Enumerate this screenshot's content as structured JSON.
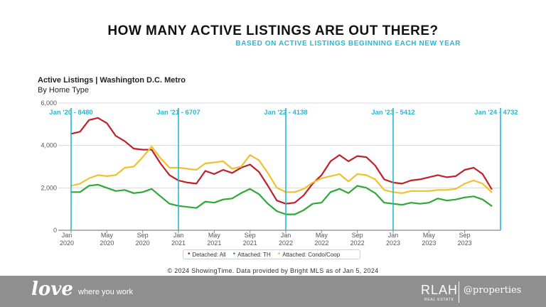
{
  "header": {
    "title": "HOW MANY ACTIVE LISTINGS ARE OUT THERE?",
    "subtitle": "BASED ON ACTIVE LISTINGS BEGINNING EACH NEW YEAR"
  },
  "chart_data": {
    "type": "line",
    "title": "Active Listings | Washington D.C. Metro",
    "subtitle": "By Home Type",
    "ylim": [
      0,
      6000
    ],
    "yticks": [
      0,
      2000,
      4000,
      6000
    ],
    "ytick_labels": [
      "0",
      "2,000",
      "4,000",
      "6,000"
    ],
    "x_start": "2020-01",
    "n_months": 48,
    "xticks": [
      {
        "month": 0,
        "label1": "Jan",
        "label2": "2020"
      },
      {
        "month": 4,
        "label1": "May",
        "label2": "2020"
      },
      {
        "month": 8,
        "label1": "Sep",
        "label2": "2020"
      },
      {
        "month": 12,
        "label1": "Jan",
        "label2": "2021"
      },
      {
        "month": 16,
        "label1": "May",
        "label2": "2021"
      },
      {
        "month": 20,
        "label1": "Sep",
        "label2": "2021"
      },
      {
        "month": 24,
        "label1": "Jan",
        "label2": "2022"
      },
      {
        "month": 28,
        "label1": "May",
        "label2": "2022"
      },
      {
        "month": 32,
        "label1": "Sep",
        "label2": "2022"
      },
      {
        "month": 36,
        "label1": "Jan",
        "label2": "2023"
      },
      {
        "month": 40,
        "label1": "May",
        "label2": "2023"
      },
      {
        "month": 44,
        "label1": "Sep",
        "label2": "2023"
      }
    ],
    "markers": [
      {
        "month": 0,
        "label": "Jan '20 - 8480"
      },
      {
        "month": 12,
        "label": "Jan '21 - 6707"
      },
      {
        "month": 24,
        "label": "Jan '22 - 4138"
      },
      {
        "month": 36,
        "label": "Jan '23 - 5412"
      },
      {
        "month": 48,
        "label": "Jan '24 - 4732"
      }
    ],
    "series": [
      {
        "name": "Detached: All",
        "color": "#c0202a",
        "values": [
          4550,
          4650,
          5200,
          5300,
          5050,
          4450,
          4200,
          3850,
          3800,
          3800,
          3150,
          2600,
          2350,
          2250,
          2200,
          2800,
          2650,
          2850,
          2700,
          2950,
          3100,
          2750,
          2100,
          1400,
          1250,
          1300,
          1650,
          2200,
          2600,
          3250,
          3550,
          3250,
          3500,
          3450,
          3050,
          2400,
          2250,
          2200,
          2350,
          2400,
          2500,
          2600,
          2500,
          2550,
          2850,
          2950,
          2650,
          1950
        ]
      },
      {
        "name": "Attached: TH",
        "color": "#2ea836",
        "values": [
          1800,
          1800,
          2100,
          2150,
          2000,
          1850,
          1900,
          1750,
          1800,
          1950,
          1600,
          1250,
          1150,
          1100,
          1050,
          1350,
          1300,
          1450,
          1500,
          1750,
          1950,
          1700,
          1250,
          900,
          750,
          750,
          950,
          1250,
          1300,
          1800,
          1950,
          1750,
          2100,
          2000,
          1750,
          1300,
          1250,
          1200,
          1300,
          1250,
          1300,
          1500,
          1400,
          1450,
          1550,
          1600,
          1450,
          1150
        ]
      },
      {
        "name": "Attached: Condo/Coop",
        "color": "#f0c030",
        "values": [
          2100,
          2200,
          2450,
          2600,
          2550,
          2600,
          2950,
          3000,
          3450,
          3950,
          3400,
          2950,
          2950,
          2900,
          2850,
          3150,
          3200,
          3250,
          2900,
          3000,
          3550,
          3300,
          2700,
          2000,
          1800,
          1800,
          1950,
          2250,
          2450,
          2550,
          2650,
          2300,
          2650,
          2600,
          2400,
          1900,
          1800,
          1750,
          1850,
          1850,
          1850,
          1900,
          1900,
          1950,
          2200,
          2350,
          2200,
          1800
        ]
      }
    ]
  },
  "legend": {
    "items": [
      {
        "label": "Detached: All",
        "color": "#c0202a"
      },
      {
        "label": "Attached: TH",
        "color": "#2ea836"
      },
      {
        "label": "Attached: Condo/Coop",
        "color": "#f0c030"
      }
    ]
  },
  "credit": "© 2024 ShowingTime. Data provided by Bright MLS as of Jan 5, 2024",
  "footer": {
    "love": "love",
    "tagline": "where you work",
    "brand": "RLAH",
    "brand_sub": "REAL ESTATE",
    "partner": "@properties"
  }
}
